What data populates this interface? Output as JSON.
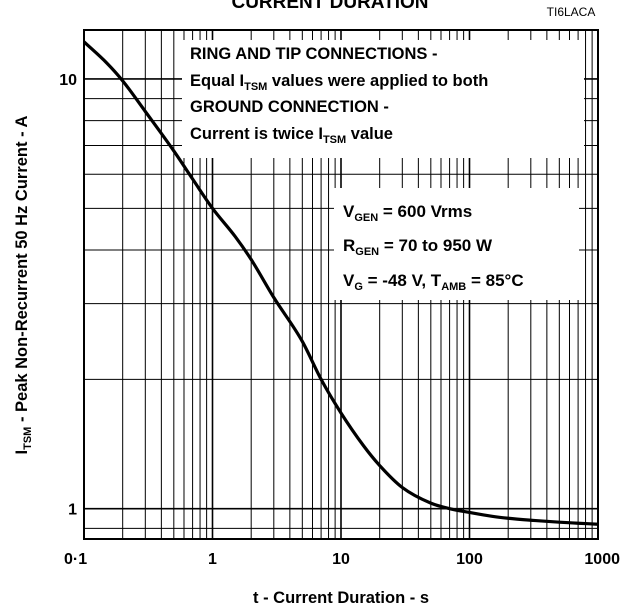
{
  "chart_data": {
    "type": "line",
    "title": "CURRENT DURATION",
    "figure_id": "TI6LACA",
    "xlabel": "t - Current Duration - s",
    "ylabel": {
      "main": "I",
      "sub": "TSM",
      "rest": " - Peak Non-Recurrent 50 Hz Current - A"
    },
    "x_scale": "log",
    "y_scale": "log",
    "xlim": [
      0.1,
      1000
    ],
    "ylim": [
      0.85,
      13
    ],
    "x_ticks": [
      {
        "value": 0.1,
        "label": "0·1"
      },
      {
        "value": 1,
        "label": "1"
      },
      {
        "value": 10,
        "label": "10"
      },
      {
        "value": 100,
        "label": "100"
      },
      {
        "value": 1000,
        "label": "1000"
      }
    ],
    "y_ticks": [
      {
        "value": 1,
        "label": "1"
      },
      {
        "value": 10,
        "label": "10"
      }
    ],
    "grid": true,
    "series": [
      {
        "x": [
          0.1,
          0.15,
          0.2,
          0.3,
          0.5,
          0.7,
          1,
          1.5,
          2,
          3,
          5,
          7,
          10,
          15,
          20,
          30,
          50,
          70,
          100,
          150,
          200,
          300,
          500,
          700,
          1000
        ],
        "y": [
          12.2,
          10.9,
          9.9,
          8.4,
          6.8,
          5.85,
          5.0,
          4.3,
          3.8,
          3.1,
          2.45,
          2.0,
          1.67,
          1.4,
          1.26,
          1.12,
          1.03,
          1.0,
          0.98,
          0.96,
          0.95,
          0.94,
          0.93,
          0.925,
          0.92
        ]
      }
    ],
    "annotations": {
      "box1": {
        "line1": "RING AND TIP CONNECTIONS -",
        "line2_a": "Equal I",
        "line2_sub": "TSM",
        "line2_b": " values were applied to both",
        "line3": "GROUND CONNECTION -",
        "line4_a": "Current is twice I",
        "line4_sub": "TSM",
        "line4_b": " value"
      },
      "box2": {
        "line1_a": "V",
        "line1_sub": "GEN",
        "line1_b": " = 600 Vrms",
        "line2_a": "R",
        "line2_sub": "GEN",
        "line2_b": " = 70 to 950 W",
        "line3_a": "V",
        "line3_sub": "G",
        "line3_b": " = -48 V, T",
        "line3_sub2": "AMB",
        "line3_c": " = 85°C"
      }
    }
  }
}
